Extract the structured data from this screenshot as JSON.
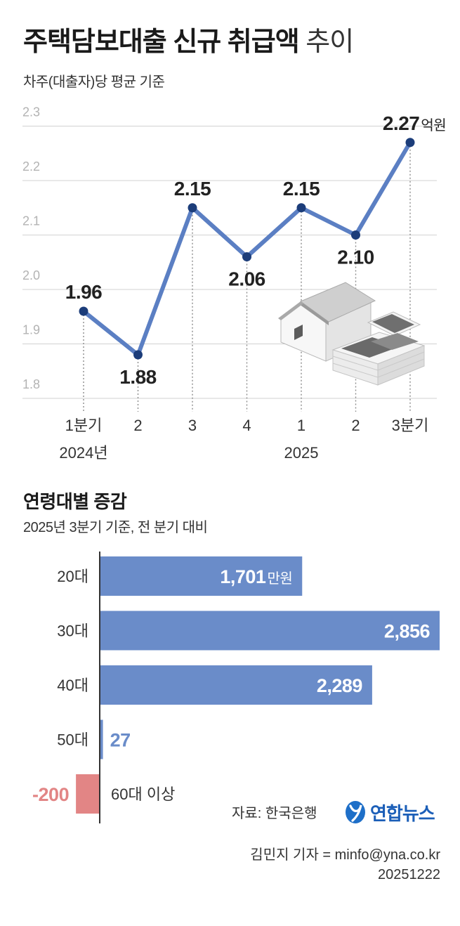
{
  "chart_data": [
    {
      "type": "line",
      "title": "주택담보대출 신규 취급액",
      "title_suffix": "추이",
      "subtitle": "차주(대출자)당 평균 기준",
      "unit": "억원",
      "x": [
        "1분기",
        "2",
        "3",
        "4",
        "1",
        "2",
        "3분기"
      ],
      "year_labels": [
        {
          "label": "2024년",
          "x_index": 0
        },
        {
          "label": "2025",
          "x_index": 4
        }
      ],
      "series": [
        {
          "values": [
            1.96,
            1.88,
            2.15,
            2.06,
            2.15,
            2.1,
            2.27
          ],
          "labels": [
            "1.96",
            "1.88",
            "2.15",
            "2.06",
            "2.15",
            "2.10",
            "2.27"
          ],
          "color": "#5b7fc3",
          "marker_color": "#1c3d7a"
        }
      ],
      "yticks": [
        "2.3",
        "2.2",
        "2.1",
        "2.0",
        "1.9",
        "1.8"
      ],
      "ylim": [
        1.8,
        2.3
      ],
      "grid": true,
      "illustration": "house-with-money-icon"
    },
    {
      "type": "bar",
      "orientation": "horizontal",
      "title": "연령대별 증감",
      "subtitle": "2025년 3분기 기준, 전 분기 대비",
      "unit": "만원",
      "categories": [
        "20대",
        "30대",
        "40대",
        "50대",
        "60대 이상"
      ],
      "values": [
        1701,
        2856,
        2289,
        27,
        -200
      ],
      "labels": [
        "1,701",
        "2,856",
        "2,289",
        "27",
        "-200"
      ],
      "positive_color": "#6a8cc9",
      "negative_color": "#e28585"
    }
  ],
  "footer": {
    "source": "자료: 한국은행",
    "logo_text": "연합뉴스",
    "logo_icon": "yonhap-news-emblem-icon",
    "byline": "김민지 기자 = minfo@yna.co.kr",
    "date": "20251222"
  }
}
